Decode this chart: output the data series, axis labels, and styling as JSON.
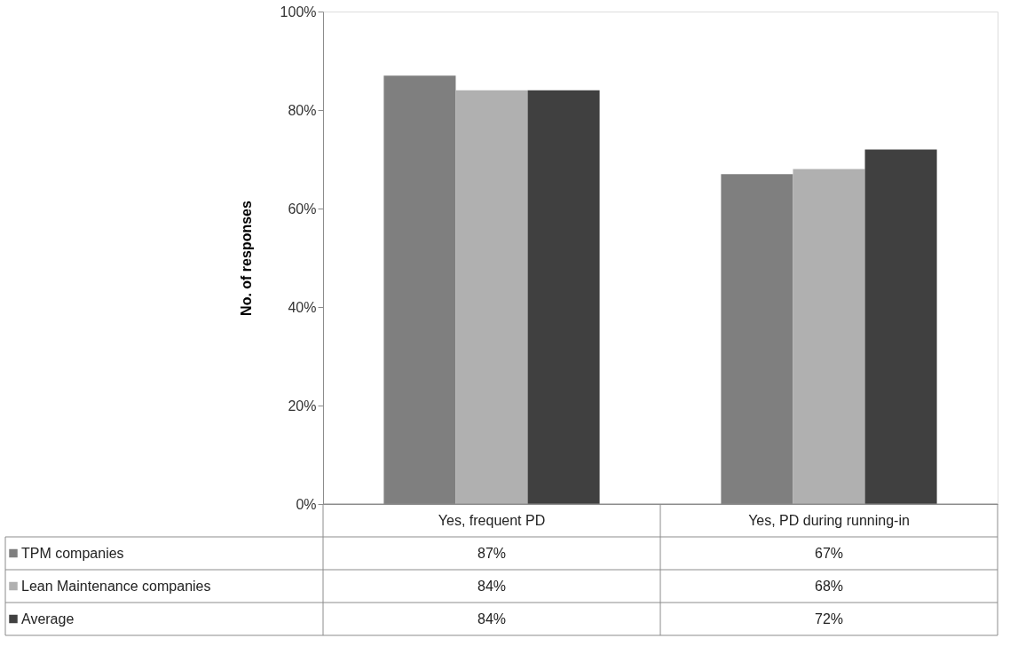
{
  "chart_data": {
    "type": "bar",
    "ylabel": "No. of responses",
    "categories": [
      "Yes, frequent PD",
      "Yes, PD during running-in"
    ],
    "series": [
      {
        "name": "TPM companies",
        "color": "#7f7f7f",
        "values": [
          87,
          67
        ],
        "value_labels": [
          "87%",
          "67%"
        ]
      },
      {
        "name": "Lean Maintenance companies",
        "color": "#b0b0b0",
        "values": [
          84,
          68
        ],
        "value_labels": [
          "84%",
          "68%"
        ]
      },
      {
        "name": "Average",
        "color": "#404040",
        "values": [
          84,
          72
        ],
        "value_labels": [
          "84%",
          "72%"
        ]
      }
    ],
    "ylim": [
      0,
      100
    ],
    "yticks": [
      {
        "value": 0,
        "label": "0%"
      },
      {
        "value": 20,
        "label": "20%"
      },
      {
        "value": 40,
        "label": "40%"
      },
      {
        "value": 60,
        "label": "60%"
      },
      {
        "value": 80,
        "label": "80%"
      },
      {
        "value": 100,
        "label": "100%"
      }
    ],
    "legend": "bottom"
  }
}
